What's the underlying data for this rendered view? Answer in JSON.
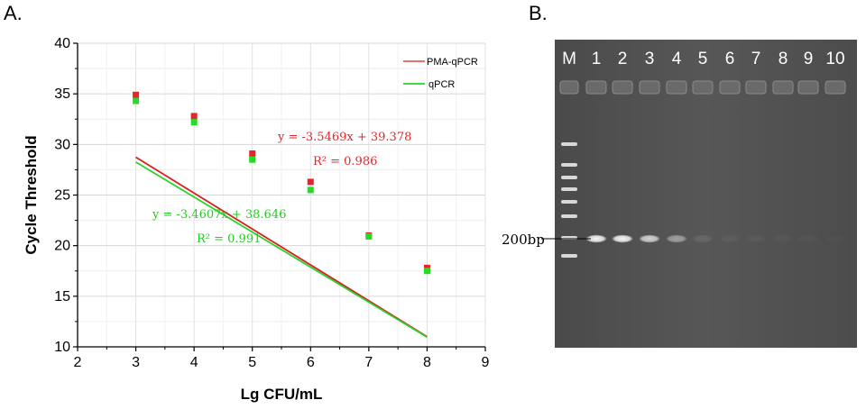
{
  "colors": {
    "pma": "#e3262a",
    "qpcr": "#22dd22",
    "pma_line": "#d81e1e",
    "qpcr_line": "#2ad32a",
    "gel_bg": "#505050",
    "band": "#f2f2f2"
  },
  "panel_a": {
    "label": "A.",
    "chart_data": {
      "type": "scatter",
      "xlabel": "Lg CFU/mL",
      "ylabel": "Cycle Threshold",
      "xlim": [
        2,
        9
      ],
      "ylim": [
        10,
        40
      ],
      "xticks": [
        "2",
        "3",
        "4",
        "5",
        "6",
        "7",
        "8",
        "9"
      ],
      "yticks": [
        "10",
        "15",
        "20",
        "25",
        "30",
        "35",
        "40"
      ],
      "grid": true,
      "legend_position": "top-right",
      "series": [
        {
          "name": "PMA-qPCR",
          "color": "#e3262a",
          "x": [
            3,
            4,
            5,
            6,
            7,
            8
          ],
          "y": [
            34.9,
            32.8,
            29.1,
            26.3,
            21.0,
            17.8
          ],
          "fit": {
            "slope": -3.5469,
            "intercept": 39.378
          },
          "equation": "y = -3.5469x + 39.378",
          "r2": "R² = 0.986"
        },
        {
          "name": "qPCR",
          "color": "#22dd22",
          "x": [
            3,
            4,
            5,
            6,
            7,
            8
          ],
          "y": [
            34.3,
            32.2,
            28.5,
            25.5,
            20.9,
            17.5
          ],
          "fit": {
            "slope": -3.4607,
            "intercept": 38.646
          },
          "equation": "y = -3.4607x + 38.646",
          "r2": "R² = 0.991"
        }
      ]
    }
  },
  "panel_b": {
    "label": "B.",
    "lanes": [
      "M",
      "1",
      "2",
      "3",
      "4",
      "5",
      "6",
      "7",
      "8",
      "9",
      "10"
    ],
    "marker_label": "200bp",
    "band_intensities": [
      0.95,
      0.95,
      0.75,
      0.45,
      0.1,
      0.05,
      0.04,
      0.03,
      0.03,
      0.02
    ]
  }
}
